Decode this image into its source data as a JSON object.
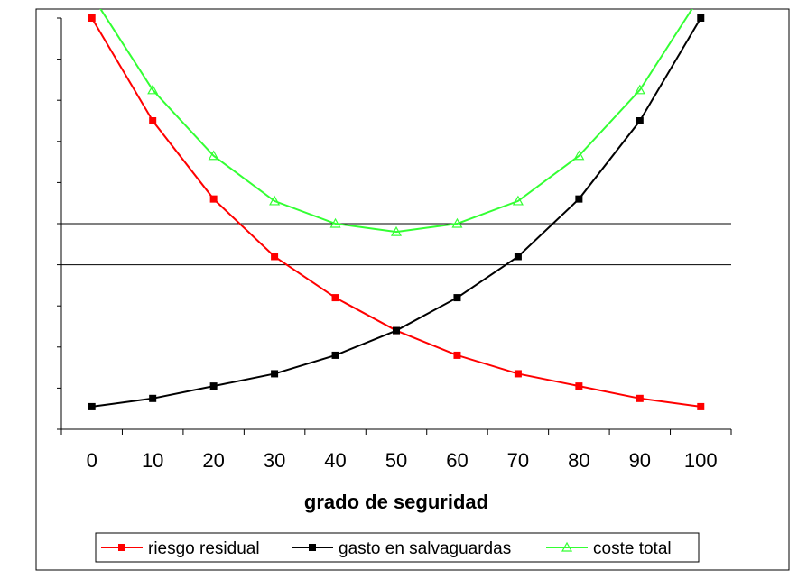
{
  "chart_data": {
    "type": "line",
    "title": "",
    "xlabel": "grado de seguridad",
    "ylabel": "",
    "x": [
      0,
      10,
      20,
      30,
      40,
      50,
      60,
      70,
      80,
      90,
      100
    ],
    "ylim": [
      0,
      10
    ],
    "y_ticks": [
      0,
      1,
      2,
      3,
      4,
      5,
      6,
      7,
      8,
      9,
      10
    ],
    "y_tick_labels_shown": false,
    "grid": {
      "horizontal_lines_at": [
        4,
        5
      ]
    },
    "legend_placement": "bottom",
    "series": [
      {
        "name": "riesgo residual",
        "color": "#ff0000",
        "marker": "square",
        "values": [
          10.0,
          7.5,
          5.6,
          4.2,
          3.2,
          2.4,
          1.8,
          1.35,
          1.05,
          0.75,
          0.55
        ]
      },
      {
        "name": "gasto en salvaguardas",
        "color": "#000000",
        "marker": "square",
        "values": [
          0.55,
          0.75,
          1.05,
          1.35,
          1.8,
          2.4,
          3.2,
          4.2,
          5.6,
          7.5,
          10.0
        ]
      },
      {
        "name": "coste total",
        "color": "#33ff33",
        "marker": "triangle-open",
        "values": [
          10.55,
          8.25,
          6.65,
          5.55,
          5.0,
          4.8,
          5.0,
          5.55,
          6.65,
          8.25,
          10.55
        ]
      }
    ]
  }
}
